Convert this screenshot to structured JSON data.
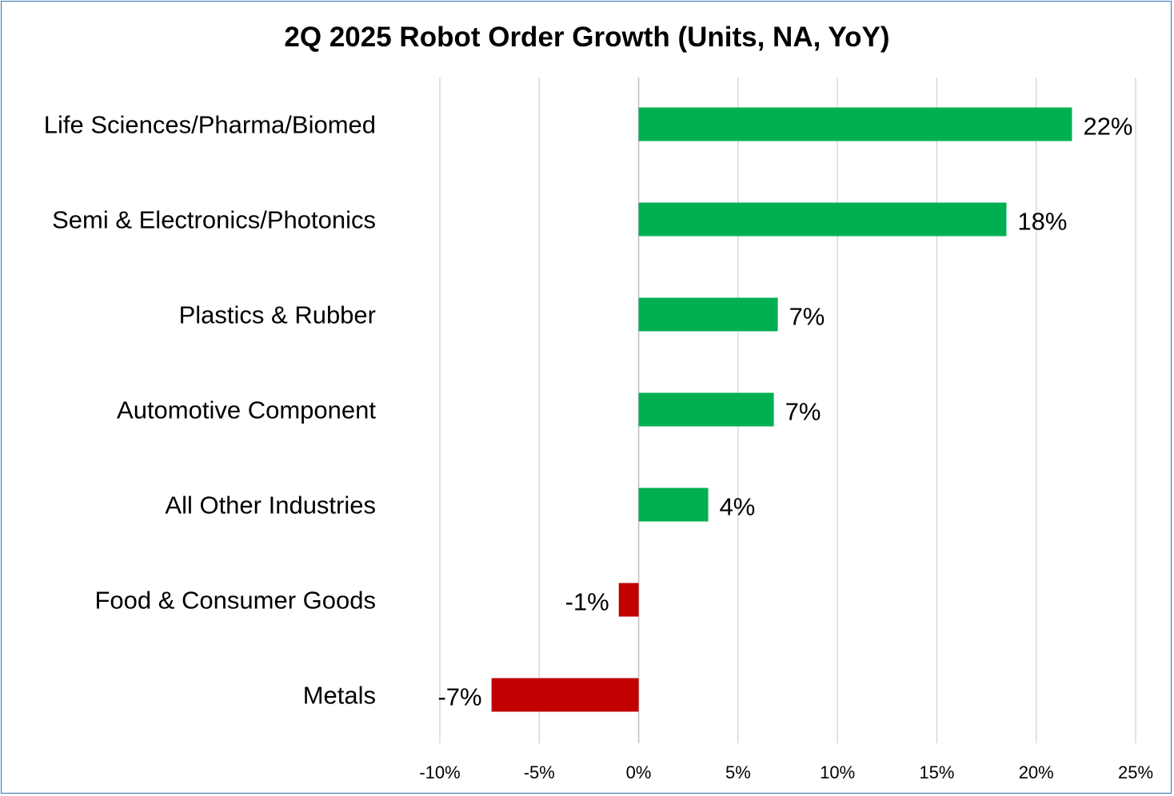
{
  "chart_data": {
    "type": "bar",
    "orientation": "horizontal",
    "title": "2Q 2025 Robot Order Growth (Units, NA, YoY)",
    "xlabel": "",
    "ylabel": "",
    "categories": [
      "Life Sciences/Pharma/Biomed",
      "Semi & Electronics/Photonics",
      "Plastics & Rubber",
      "Automotive Component",
      "All Other Industries",
      "Food & Consumer Goods",
      "Metals"
    ],
    "values": [
      21.8,
      18.5,
      7.0,
      6.8,
      3.5,
      -1.0,
      -7.4
    ],
    "data_labels": [
      "22%",
      "18%",
      "7%",
      "7%",
      "4%",
      "-1%",
      "-7%"
    ],
    "xlim": [
      -10,
      25
    ],
    "xticks": [
      -10,
      -5,
      0,
      5,
      10,
      15,
      20,
      25
    ],
    "xtick_labels": [
      "-10%",
      "-5%",
      "0%",
      "5%",
      "10%",
      "15%",
      "20%",
      "25%"
    ],
    "grid": true,
    "legend": "none",
    "colors": {
      "positive": "#00B050",
      "negative": "#C00000",
      "grid": "#D9D9D9",
      "border": "#2E75B6"
    }
  }
}
